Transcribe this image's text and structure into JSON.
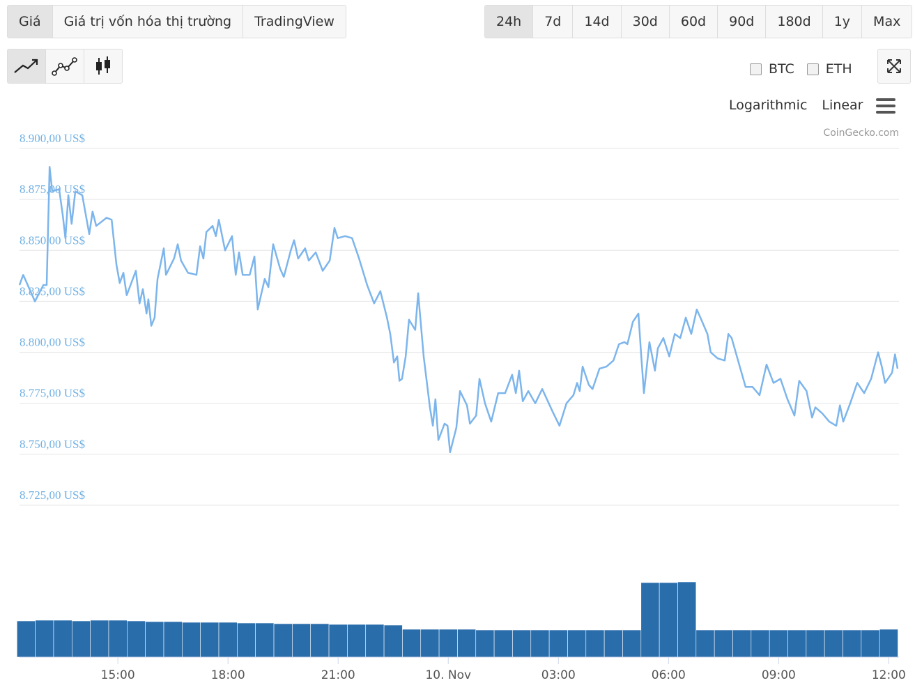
{
  "ui": {
    "tabs": [
      "Giá",
      "Giá trị vốn hóa thị trường",
      "TradingView"
    ],
    "ranges": [
      "24h",
      "7d",
      "14d",
      "30d",
      "60d",
      "90d",
      "180d",
      "1y",
      "Max"
    ],
    "compare": [
      "BTC",
      "ETH"
    ],
    "scales": [
      "Logarithmic",
      "Linear"
    ],
    "credit": "CoinGecko.com"
  },
  "chart_data": [
    {
      "type": "line",
      "color": "#7cb5ec",
      "grid": true,
      "xlim": [
        12.32,
        36.24
      ],
      "ylim": [
        8725,
        8900
      ],
      "yticks": [
        {
          "value": 8900,
          "label": "8.900,00 US$"
        },
        {
          "value": 8875,
          "label": "8.875,00 US$"
        },
        {
          "value": 8850,
          "label": "8.850,00 US$"
        },
        {
          "value": 8825,
          "label": "8.825,00 US$"
        },
        {
          "value": 8800,
          "label": "8.800,00 US$"
        },
        {
          "value": 8775,
          "label": "8.775,00 US$"
        },
        {
          "value": 8750,
          "label": "8.750,00 US$"
        },
        {
          "value": 8725,
          "label": "8.725,00 US$"
        }
      ],
      "x": [
        12.32,
        12.42,
        12.74,
        12.97,
        13.06,
        13.14,
        13.21,
        13.4,
        13.5,
        13.57,
        13.65,
        13.74,
        13.84,
        14.03,
        14.22,
        14.31,
        14.41,
        14.69,
        14.83,
        14.96,
        15.05,
        15.15,
        15.24,
        15.49,
        15.59,
        15.68,
        15.78,
        15.83,
        15.91,
        16.0,
        16.08,
        16.25,
        16.31,
        16.53,
        16.63,
        16.72,
        16.91,
        17.14,
        17.24,
        17.33,
        17.41,
        17.58,
        17.67,
        17.75,
        17.92,
        18.11,
        18.21,
        18.3,
        18.4,
        18.59,
        18.72,
        18.81,
        19.0,
        19.1,
        19.23,
        19.42,
        19.52,
        19.71,
        19.8,
        19.91,
        20.1,
        20.2,
        20.39,
        20.58,
        20.77,
        20.9,
        20.99,
        21.19,
        21.38,
        21.57,
        21.79,
        21.98,
        22.15,
        22.33,
        22.42,
        22.52,
        22.61,
        22.67,
        22.74,
        22.84,
        22.93,
        23.1,
        23.18,
        23.33,
        23.5,
        23.58,
        23.65,
        23.73,
        23.9,
        23.98,
        24.05,
        24.22,
        24.32,
        24.51,
        24.59,
        24.76,
        24.85,
        25.0,
        25.17,
        25.36,
        25.55,
        25.74,
        25.84,
        25.93,
        26.03,
        26.18,
        26.37,
        26.56,
        26.84,
        27.03,
        27.22,
        27.41,
        27.51,
        27.58,
        27.66,
        27.83,
        27.93,
        28.12,
        28.31,
        28.5,
        28.65,
        28.8,
        28.88,
        29.03,
        29.18,
        29.25,
        29.33,
        29.48,
        29.63,
        29.71,
        29.86,
        30.02,
        30.17,
        30.32,
        30.47,
        30.62,
        30.77,
        30.87,
        31.06,
        31.15,
        31.34,
        31.53,
        31.63,
        31.72,
        31.91,
        32.1,
        32.29,
        32.48,
        32.67,
        32.86,
        33.05,
        33.24,
        33.43,
        33.56,
        33.76,
        33.91,
        34.0,
        34.19,
        34.38,
        34.57,
        34.67,
        34.76,
        34.95,
        35.14,
        35.33,
        35.52,
        35.71,
        35.81,
        35.9,
        36.09,
        36.17,
        36.24
      ],
      "values": [
        8833,
        8838,
        8825,
        8833,
        8833,
        8891,
        8879,
        8880,
        8867,
        8856,
        8877,
        8863,
        8879,
        8877,
        8858,
        8869,
        8862,
        8866,
        8865,
        8843,
        8834,
        8839,
        8828,
        8840,
        8824,
        8831,
        8819,
        8826,
        8813,
        8817,
        8836,
        8851,
        8838,
        8846,
        8853,
        8845,
        8839,
        8838,
        8852,
        8846,
        8859,
        8862,
        8857,
        8865,
        8850,
        8857,
        8838,
        8849,
        8838,
        8838,
        8847,
        8821,
        8836,
        8832,
        8853,
        8841,
        8837,
        8850,
        8855,
        8846,
        8851,
        8845,
        8849,
        8840,
        8845,
        8861,
        8856,
        8857,
        8856,
        8846,
        8833,
        8824,
        8830,
        8817,
        8809,
        8795,
        8798,
        8786,
        8787,
        8798,
        8816,
        8811,
        8829,
        8798,
        8773,
        8764,
        8777,
        8757,
        8765,
        8764,
        8751,
        8763,
        8781,
        8774,
        8765,
        8769,
        8787,
        8775,
        8766,
        8780,
        8780,
        8789,
        8780,
        8791,
        8776,
        8781,
        8775,
        8782,
        8771,
        8764,
        8775,
        8779,
        8785,
        8781,
        8793,
        8784,
        8782,
        8792,
        8793,
        8796,
        8804,
        8805,
        8804,
        8815,
        8819,
        8800,
        8780,
        8805,
        8791,
        8802,
        8807,
        8798,
        8809,
        8807,
        8817,
        8809,
        8821,
        8817,
        8809,
        8800,
        8797,
        8796,
        8809,
        8807,
        8795,
        8783,
        8783,
        8779,
        8794,
        8785,
        8787,
        8777,
        8769,
        8786,
        8781,
        8768,
        8773,
        8770,
        8766,
        8764,
        8774,
        8766,
        8775,
        8785,
        8780,
        8787,
        8800,
        8793,
        8785,
        8790,
        8799,
        8792
      ]
    },
    {
      "type": "bar",
      "color": "#2a6dab",
      "xlim": [
        12.32,
        36.24
      ],
      "ylim": [
        0,
        110
      ],
      "xticks": [
        {
          "value": 15,
          "label": "15:00"
        },
        {
          "value": 18,
          "label": "18:00"
        },
        {
          "value": 21,
          "label": "21:00"
        },
        {
          "value": 24,
          "label": "10. Nov"
        },
        {
          "value": 27,
          "label": "03:00"
        },
        {
          "value": 30,
          "label": "06:00"
        },
        {
          "value": 33,
          "label": "09:00"
        },
        {
          "value": 36,
          "label": "12:00"
        }
      ],
      "x": [
        12.5,
        13,
        13.5,
        14,
        14.5,
        15,
        15.5,
        16,
        16.5,
        17,
        17.5,
        18,
        18.5,
        19,
        19.5,
        20,
        20.5,
        21,
        21.5,
        22,
        22.5,
        23,
        23.5,
        24,
        24.5,
        25,
        25.5,
        26,
        26.5,
        27,
        27.5,
        28,
        28.5,
        29,
        29.5,
        30,
        30.5,
        31,
        31.5,
        32,
        32.5,
        33,
        33.5,
        34,
        34.5,
        35,
        35.5,
        36
      ],
      "values": [
        52,
        53,
        53,
        52,
        53,
        53,
        52,
        51,
        51,
        50,
        50,
        50,
        49,
        49,
        48,
        48,
        48,
        47,
        47,
        47,
        46,
        40,
        40,
        40,
        40,
        39,
        39,
        39,
        39,
        39,
        39,
        39,
        39,
        39,
        107,
        107,
        108,
        39,
        39,
        39,
        39,
        39,
        39,
        39,
        39,
        39,
        39,
        40
      ]
    }
  ]
}
